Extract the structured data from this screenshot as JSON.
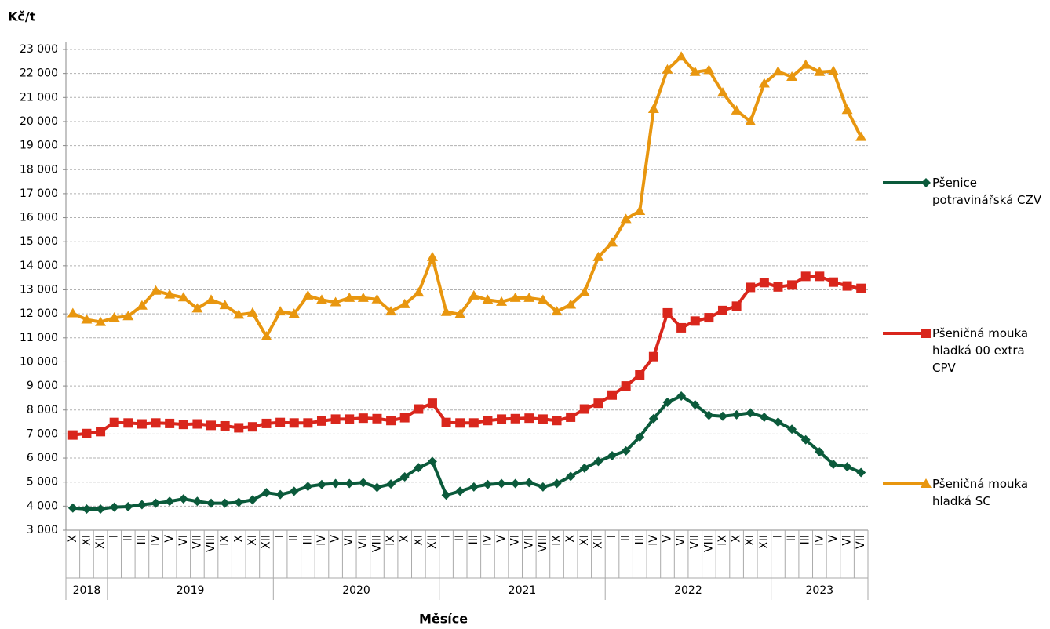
{
  "chart_data": {
    "type": "line",
    "y_label": "Kč/t",
    "x_label": "Měsíce",
    "categories": [
      "X",
      "XI",
      "XII",
      "I",
      "II",
      "III",
      "IV",
      "V",
      "VI",
      "VII",
      "VIII",
      "IX",
      "X",
      "XI",
      "XII",
      "I",
      "II",
      "III",
      "IV",
      "V",
      "VI",
      "VII",
      "VIII",
      "IX",
      "X",
      "XI",
      "XII",
      "I",
      "II",
      "III",
      "IV",
      "V",
      "VI",
      "VII",
      "VIII",
      "IX",
      "X",
      "XI",
      "XII",
      "I",
      "II",
      "III",
      "IV",
      "V",
      "VI",
      "VII",
      "VIII",
      "IX",
      "X",
      "XI",
      "XII",
      "I",
      "II",
      "III",
      "IV",
      "V",
      "VI",
      "VII"
    ],
    "years": [
      "2018",
      "2019",
      "2020",
      "2021",
      "2022",
      "2023"
    ],
    "ylim": [
      3000,
      23000
    ],
    "yticks": [
      {
        "value": 3000,
        "label": "3 000"
      },
      {
        "value": 4000,
        "label": "4 000"
      },
      {
        "value": 5000,
        "label": "5 000"
      },
      {
        "value": 6000,
        "label": "6 000"
      },
      {
        "value": 7000,
        "label": "7 000"
      },
      {
        "value": 8000,
        "label": "8 000"
      },
      {
        "value": 9000,
        "label": "9 000"
      },
      {
        "value": 10000,
        "label": "10 000"
      },
      {
        "value": 11000,
        "label": "11 000"
      },
      {
        "value": 12000,
        "label": "12 000"
      },
      {
        "value": 13000,
        "label": "13 000"
      },
      {
        "value": 14000,
        "label": "14 000"
      },
      {
        "value": 15000,
        "label": "15 000"
      },
      {
        "value": 16000,
        "label": "16 000"
      },
      {
        "value": 17000,
        "label": "17 000"
      },
      {
        "value": 18000,
        "label": "18 000"
      },
      {
        "value": 19000,
        "label": "19 000"
      },
      {
        "value": 20000,
        "label": "20 000"
      },
      {
        "value": 21000,
        "label": "21 000"
      },
      {
        "value": 22000,
        "label": "22 000"
      },
      {
        "value": 23000,
        "label": "23 000"
      }
    ],
    "grid": true,
    "legend": "right",
    "series": [
      {
        "name": "Pšenice potravinářská CZV",
        "color": "#0b5a3b",
        "marker": "diamond",
        "values": [
          3920,
          3880,
          3880,
          3960,
          3980,
          4060,
          4120,
          4200,
          4300,
          4200,
          4120,
          4120,
          4160,
          4260,
          4560,
          4480,
          4620,
          4820,
          4900,
          4940,
          4940,
          4980,
          4780,
          4920,
          5220,
          5600,
          5860,
          4460,
          4620,
          4800,
          4900,
          4940,
          4940,
          4980,
          4800,
          4940,
          5240,
          5580,
          5860,
          6100,
          6300,
          6880,
          7640,
          8320,
          8580,
          8220,
          7780,
          7740,
          7800,
          7880,
          7700,
          7500,
          7200,
          6760,
          6260,
          5740,
          5640,
          5400
        ]
      },
      {
        "name": "Pšeničná mouka hladká 00 extra CPV",
        "color": "#d9261c",
        "marker": "square",
        "values": [
          6960,
          7020,
          7100,
          7480,
          7460,
          7420,
          7460,
          7440,
          7400,
          7420,
          7360,
          7340,
          7260,
          7300,
          7440,
          7480,
          7460,
          7460,
          7540,
          7620,
          7620,
          7660,
          7640,
          7560,
          7680,
          8040,
          8280,
          7480,
          7460,
          7460,
          7560,
          7620,
          7640,
          7660,
          7620,
          7560,
          7700,
          8040,
          8280,
          8620,
          9000,
          9460,
          10220,
          12040,
          11420,
          11700,
          11840,
          12140,
          12320,
          13100,
          13300,
          13120,
          13200,
          13560,
          13560,
          13320,
          13160,
          13060
        ]
      },
      {
        "name": "Pšeničná mouka hladká SC",
        "color": "#e8960f",
        "marker": "triangle",
        "values": [
          12020,
          11760,
          11660,
          11840,
          11900,
          12340,
          12960,
          12800,
          12680,
          12220,
          12580,
          12360,
          11960,
          12040,
          11060,
          12100,
          12000,
          12760,
          12580,
          12480,
          12660,
          12660,
          12600,
          12100,
          12400,
          12880,
          14360,
          12080,
          11980,
          12760,
          12580,
          12500,
          12660,
          12660,
          12580,
          12100,
          12380,
          12900,
          14360,
          14960,
          15940,
          16280,
          20520,
          22160,
          22700,
          22060,
          22140,
          21200,
          20460,
          20000,
          21580,
          22080,
          21860,
          22360,
          22060,
          22100,
          20480,
          19360
        ]
      }
    ]
  }
}
